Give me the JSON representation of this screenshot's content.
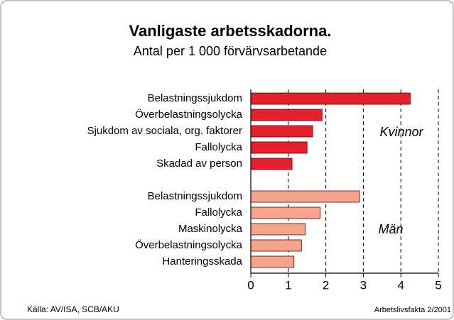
{
  "chart_data": {
    "type": "bar",
    "orientation": "horizontal",
    "title": "Vanligaste arbetsskadorna.",
    "subtitle": "Antal per 1 000 förvärvsarbetande",
    "groups": [
      {
        "name": "Kvinnor",
        "color": "#e3202e",
        "categories": [
          "Belastningssjukdom",
          "Överbelastningsolycka",
          "Sjukdom av sociala, org. faktorer",
          "Fallolycka",
          "Skadad av person"
        ],
        "values": [
          4.25,
          1.9,
          1.65,
          1.5,
          1.1
        ]
      },
      {
        "name": "Män",
        "color": "#f4a58f",
        "categories": [
          "Belastningssjukdom",
          "Fallolycka",
          "Maskinolycka",
          "Överbelastningsolycka",
          "Hanteringsskada"
        ],
        "values": [
          2.9,
          1.85,
          1.45,
          1.35,
          1.15
        ]
      }
    ],
    "xlim": [
      0,
      5
    ],
    "xticks": [
      0,
      1,
      2,
      3,
      4,
      5
    ],
    "grid": true,
    "source": "Källa: AV/ISA, SCB/AKU",
    "credit": "Arbetslivsfakta 2/2001"
  }
}
